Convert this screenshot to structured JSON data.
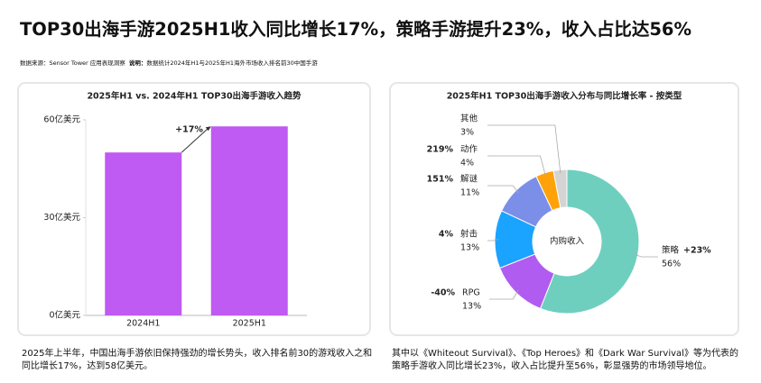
{
  "title": "TOP30出海手游2025H1收入同比增长17%，策略手游提升23%，收入占比达56%",
  "source": "数据来源：Sensor Tower 应用表现洞察",
  "note_label": "说明：",
  "note": "数据统计2024年H1与2025年H1海外市场收入排名前30中国手游",
  "chart_data": [
    {
      "type": "bar",
      "title": "2025年H1 vs. 2024年H1 TOP30出海手游收入趋势",
      "categories": [
        "2024H1",
        "2025H1"
      ],
      "values": [
        50,
        58
      ],
      "color": "#bf5af2",
      "ylim": [
        0,
        60
      ],
      "yticks": [
        {
          "value": 0,
          "label": "0亿美元"
        },
        {
          "value": 30,
          "label": "30亿美元"
        },
        {
          "value": 60,
          "label": "60亿美元"
        }
      ],
      "annotation": "+17%",
      "annotation_color": "#1aa37a"
    },
    {
      "type": "pie",
      "title": "2025年H1 TOP30出海手游收入分布与同比增长率 - 按类型",
      "center_label": "内购收入",
      "categories": [
        "策略",
        "RPG",
        "射击",
        "解谜",
        "动作",
        "其他"
      ],
      "values": [
        56,
        13,
        13,
        11,
        4,
        3
      ],
      "value_labels": [
        "56%",
        "13%",
        "13%",
        "11%",
        "4%",
        "3%"
      ],
      "colors": [
        "#6fcfbf",
        "#b05cf0",
        "#1aa3ff",
        "#7b8fe8",
        "#ffa20a",
        "#d4d4d4"
      ],
      "growth": [
        "+23%",
        "-40%",
        "4%",
        "151%",
        "219%",
        null
      ],
      "growth_colors": {
        "positive": "#1aa37a",
        "negative": "#e03c31"
      }
    }
  ],
  "captions": [
    "2025年上半年，中国出海手游依旧保持强劲的增长势头，收入排名前30的游戏收入之和同比增长17%，达到58亿美元。",
    "其中以《Whiteout Survival》、《Top Heroes》和《Dark War Survival》等为代表的策略手游收入同比增长23%，收入占比提升至56%，彰显强势的市场领导地位。"
  ]
}
